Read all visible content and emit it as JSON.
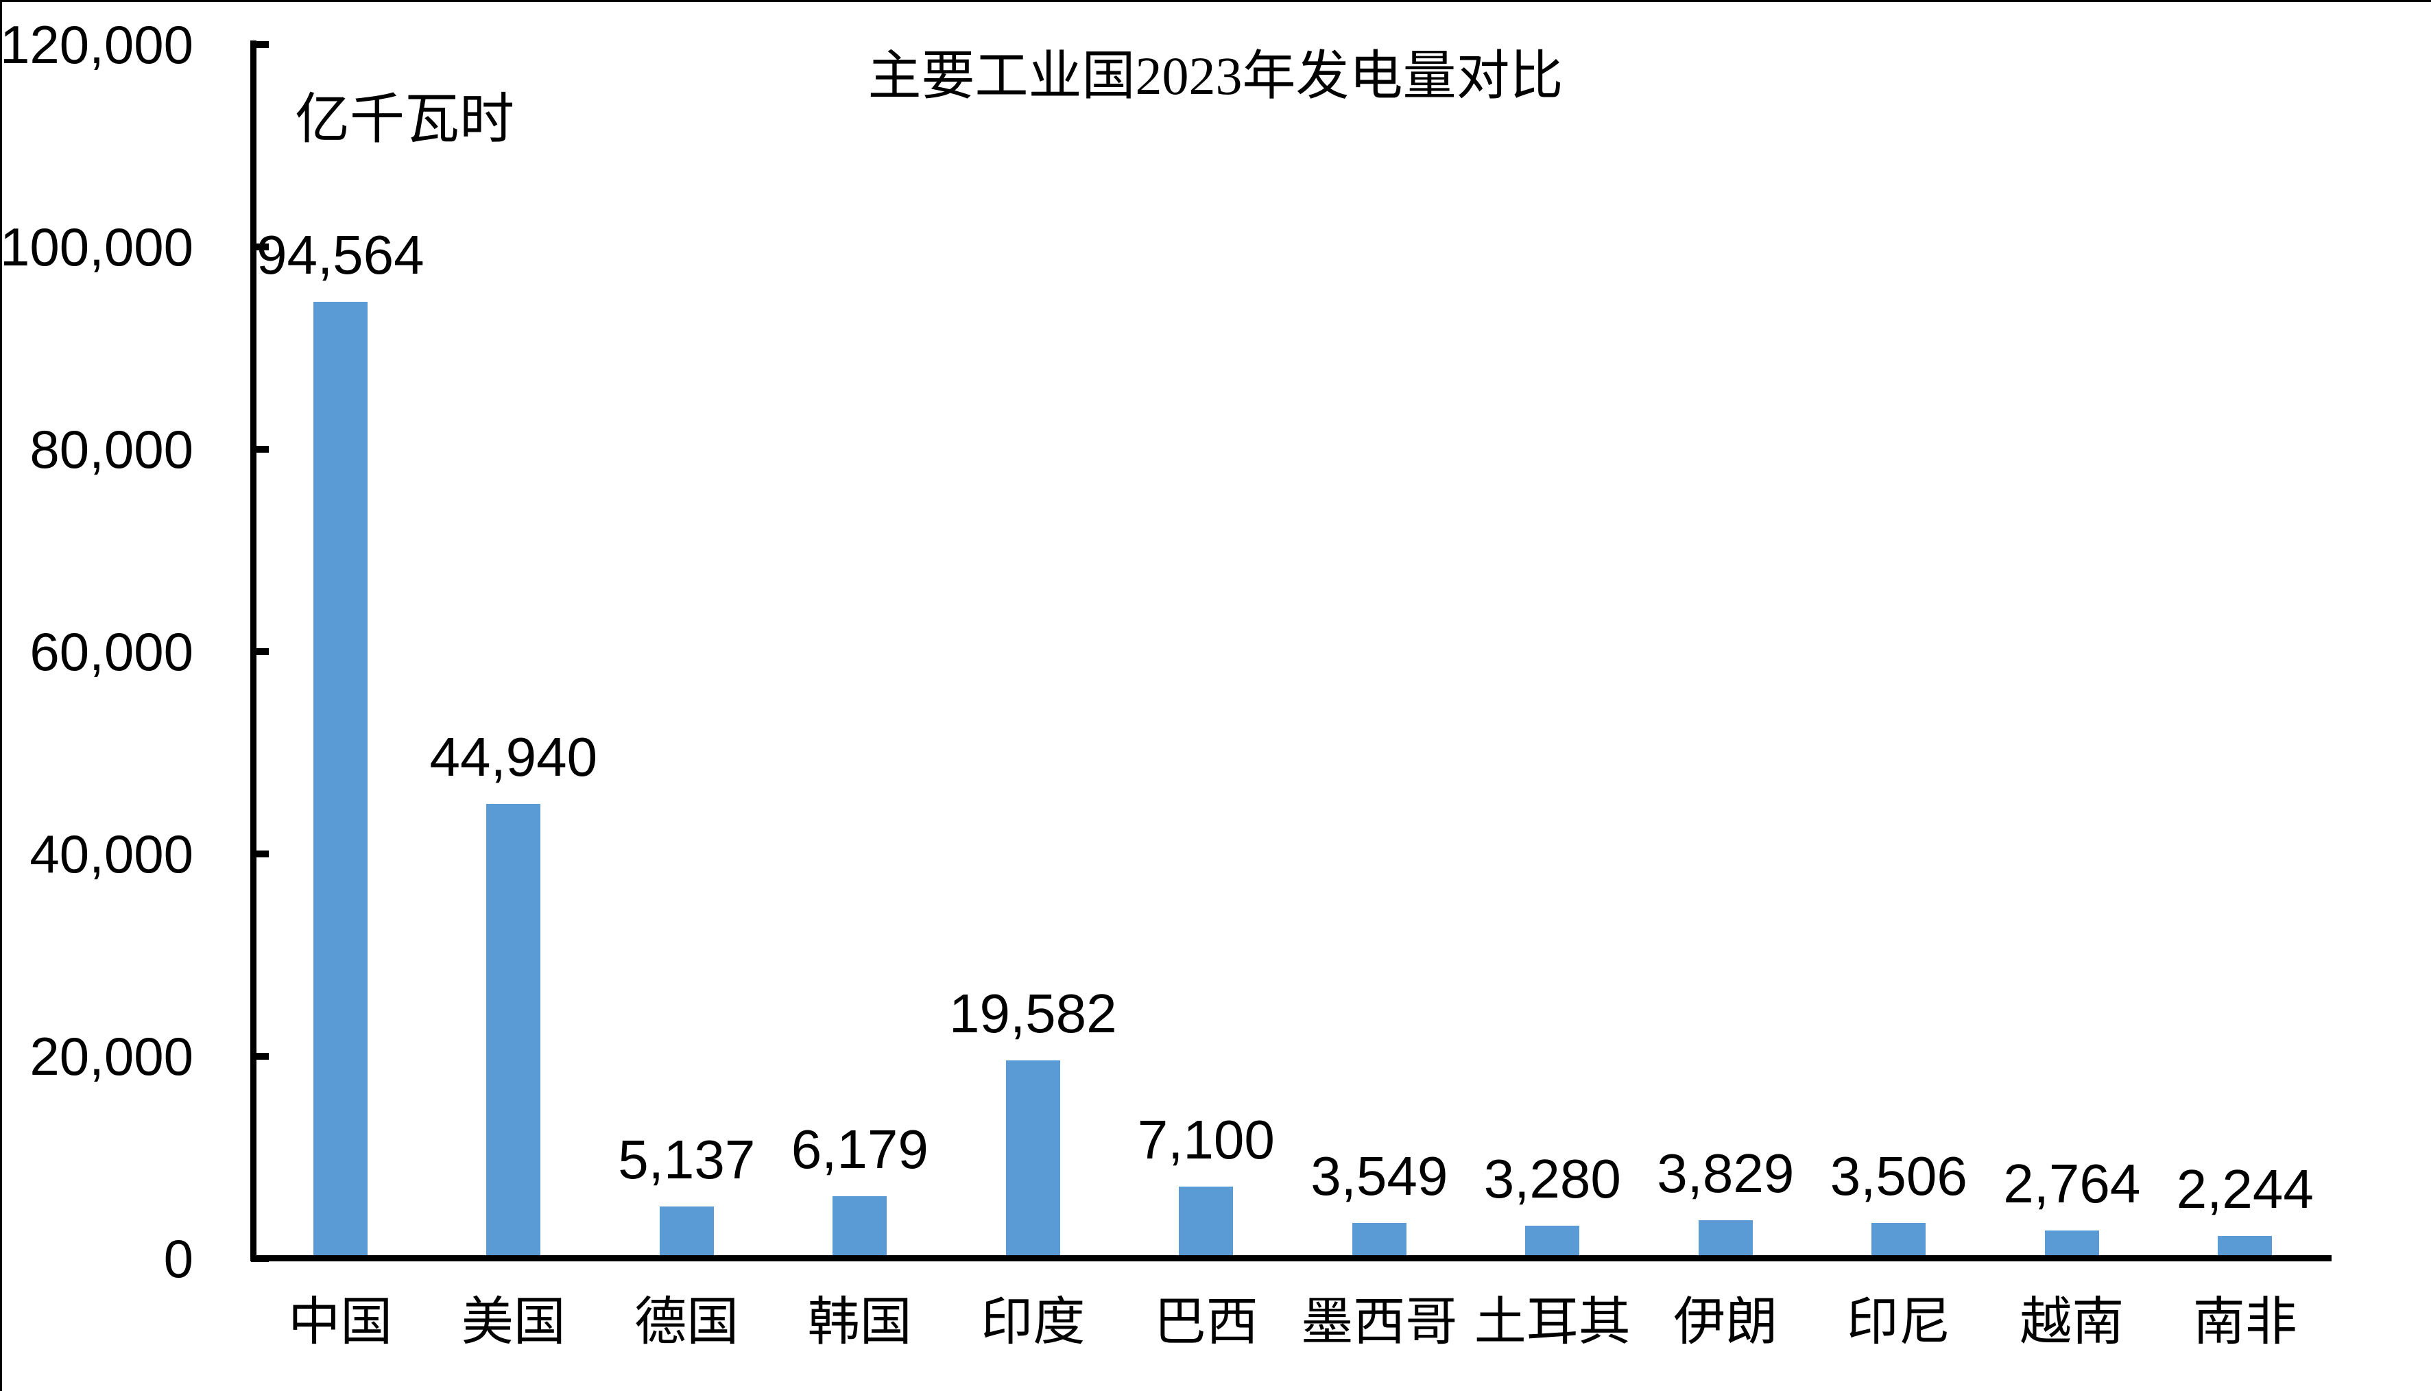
{
  "chart_data": {
    "type": "bar",
    "title": "主要工业国2023年发电量对比",
    "ylabel": "亿千瓦时",
    "xlabel": "",
    "categories": [
      "中国",
      "美国",
      "德国",
      "韩国",
      "印度",
      "巴西",
      "墨西哥",
      "土耳其",
      "伊朗",
      "印尼",
      "越南",
      "南非"
    ],
    "values": [
      94564,
      44940,
      5137,
      6179,
      19582,
      7100,
      3549,
      3280,
      3829,
      3506,
      2764,
      2244
    ],
    "value_labels": [
      "94,564",
      "44,940",
      "5,137",
      "6,179",
      "19,582",
      "7,100",
      "3,549",
      "3,280",
      "3,829",
      "3,506",
      "2,764",
      "2,244"
    ],
    "ylim": [
      0,
      120000
    ],
    "y_tick_step": 20000,
    "y_tick_labels": [
      "0",
      "20,000",
      "40,000",
      "60,000",
      "80,000",
      "100,000",
      "120,000"
    ],
    "grid": false,
    "legend": false,
    "bar_color": "#5B9BD5",
    "axis_color": "#000000",
    "text_color": "#000000",
    "background_color": "#FFFFFF"
  }
}
